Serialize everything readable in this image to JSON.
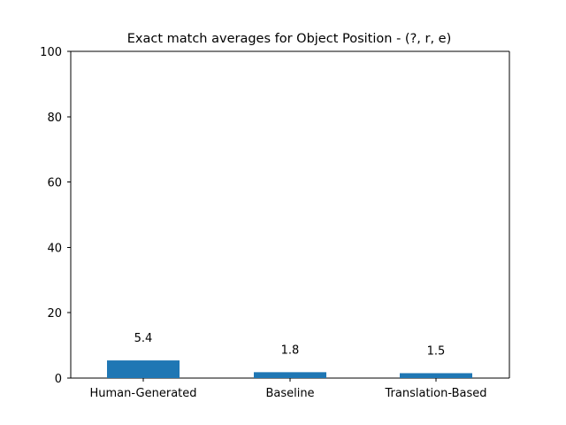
{
  "chart_data": {
    "type": "bar",
    "title": "Exact match averages for Object Position - (?, r, e)",
    "categories": [
      "Human-Generated",
      "Baseline",
      "Translation-Based"
    ],
    "values": [
      5.4,
      1.8,
      1.5
    ],
    "value_labels": [
      "5.4",
      "1.8",
      "1.5"
    ],
    "ylim": [
      0,
      100
    ],
    "yticks": [
      0,
      20,
      40,
      60,
      80,
      100
    ],
    "ytick_labels": [
      "0",
      "20",
      "40",
      "60",
      "80",
      "100"
    ],
    "xlabel": "",
    "ylabel": "",
    "grid": false,
    "bar_color": "#1f77b4"
  }
}
